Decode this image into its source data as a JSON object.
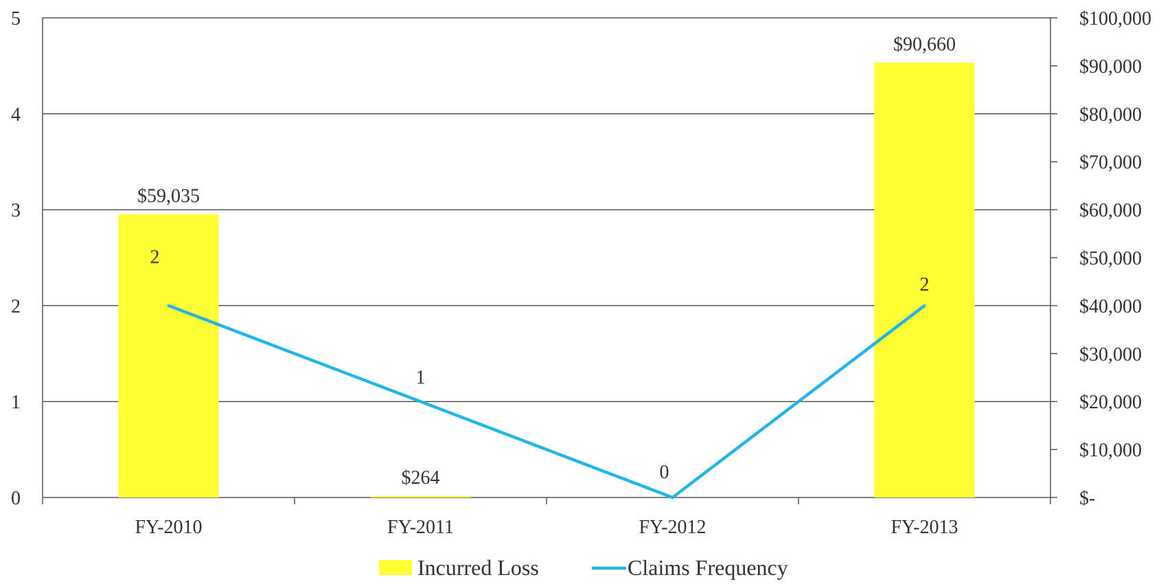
{
  "chart_data": {
    "type": "bar",
    "categories": [
      "FY-2010",
      "FY-2011",
      "FY-2012",
      "FY-2013"
    ],
    "series": [
      {
        "name": "Incurred Loss",
        "kind": "bar",
        "axis": "right",
        "color": "#ffff33",
        "values": [
          59035,
          264,
          0,
          90660
        ],
        "labels": [
          "$59,035",
          "$264",
          "",
          "$90,660"
        ]
      },
      {
        "name": "Claims Frequency",
        "kind": "line",
        "axis": "left",
        "color": "#22b5e6",
        "values": [
          2,
          1,
          0,
          2
        ],
        "labels": [
          "2",
          "1",
          "0",
          "2"
        ]
      }
    ],
    "y_left": {
      "range": [
        0,
        5
      ],
      "ticks": [
        0,
        1,
        2,
        3,
        4,
        5
      ],
      "tick_labels": [
        "0",
        "1",
        "2",
        "3",
        "4",
        "5"
      ]
    },
    "y_right": {
      "range": [
        0,
        100000
      ],
      "ticks": [
        0,
        10000,
        20000,
        30000,
        40000,
        50000,
        60000,
        70000,
        80000,
        90000,
        100000
      ],
      "tick_labels": [
        "$-",
        "$10,000",
        "$20,000",
        "$30,000",
        "$40,000",
        "$50,000",
        "$60,000",
        "$70,000",
        "$80,000",
        "$90,000",
        "$100,000"
      ]
    },
    "grid": true,
    "legend_position": "bottom",
    "gridline_color": "#555555"
  }
}
